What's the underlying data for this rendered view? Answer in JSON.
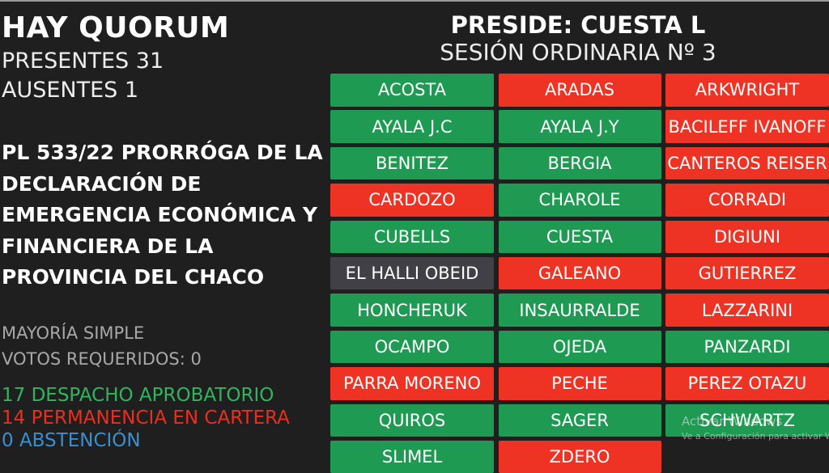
{
  "header": {
    "quorum": "HAY QUORUM",
    "presentes": "PRESENTES 31",
    "ausentes": "AUSENTES 1",
    "preside": "PRESIDE: CUESTA L",
    "sesion": "SESIÓN ORDINARIA Nº 3"
  },
  "motion": {
    "lines": [
      "PL 533/22 PRORRÓGA DE LA",
      "DECLARACIÓN DE",
      "EMERGENCIA ECONÓMICA Y",
      "FINANCIERA DE LA",
      "PROVINCIA DEL CHACO"
    ]
  },
  "requirements": {
    "mayoria": "MAYORÍA SIMPLE",
    "votos": "VOTOS REQUERIDOS: 0"
  },
  "results": {
    "aprobatorio": "17 DESPACHO APROBATORIO",
    "cartera": "14 PERMANENCIA EN CARTERA",
    "abstencion": "0 ABSTENCIÓN"
  },
  "colors": {
    "si": "#1f9a52",
    "no": "#ee3324",
    "abstencion": "#414046",
    "aprobatorio_text": "#2fb55d",
    "cartera_text": "#f02c1a",
    "abstencion_text": "#3a8fd0"
  },
  "vote_legend": {
    "si": "green",
    "no": "red",
    "abstencion": "gray"
  },
  "legislators": [
    {
      "name": "ACOSTA",
      "vote": "si"
    },
    {
      "name": "ARADAS",
      "vote": "no"
    },
    {
      "name": "ARKWRIGHT",
      "vote": "no"
    },
    {
      "name": "AYALA J.C",
      "vote": "si"
    },
    {
      "name": "AYALA J.Y",
      "vote": "si"
    },
    {
      "name": "BACILEFF IVANOFF",
      "vote": "no"
    },
    {
      "name": "BENITEZ",
      "vote": "si"
    },
    {
      "name": "BERGIA",
      "vote": "si"
    },
    {
      "name": "CANTEROS REISER",
      "vote": "no"
    },
    {
      "name": "CARDOZO",
      "vote": "no"
    },
    {
      "name": "CHAROLE",
      "vote": "si"
    },
    {
      "name": "CORRADI",
      "vote": "no"
    },
    {
      "name": "CUBELLS",
      "vote": "si"
    },
    {
      "name": "CUESTA",
      "vote": "si"
    },
    {
      "name": "DIGIUNI",
      "vote": "no"
    },
    {
      "name": "EL HALLI OBEID",
      "vote": "abs"
    },
    {
      "name": "GALEANO",
      "vote": "no"
    },
    {
      "name": "GUTIERREZ",
      "vote": "no"
    },
    {
      "name": "HONCHERUK",
      "vote": "si"
    },
    {
      "name": "INSAURRALDE",
      "vote": "si"
    },
    {
      "name": "LAZZARINI",
      "vote": "no"
    },
    {
      "name": "OCAMPO",
      "vote": "si"
    },
    {
      "name": "OJEDA",
      "vote": "si"
    },
    {
      "name": "PANZARDI",
      "vote": "si"
    },
    {
      "name": "PARRA MORENO",
      "vote": "no"
    },
    {
      "name": "PECHE",
      "vote": "no"
    },
    {
      "name": "PEREZ OTAZU",
      "vote": "no"
    },
    {
      "name": "QUIROS",
      "vote": "si"
    },
    {
      "name": "SAGER",
      "vote": "si"
    },
    {
      "name": "SCHWARTZ",
      "vote": "si"
    },
    {
      "name": "SLIMEL",
      "vote": "si"
    },
    {
      "name": "ZDERO",
      "vote": "no"
    }
  ],
  "watermark": {
    "title": "Activar Windows",
    "subtitle": "Ve a Configuración para activar Windows."
  }
}
